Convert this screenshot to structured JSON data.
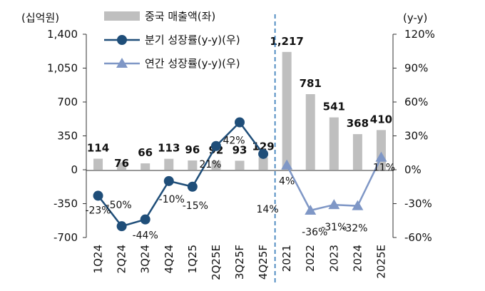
{
  "chart_data": {
    "type": "bar+line",
    "left_axis_unit": "(십억원)",
    "right_axis_unit": "(y-y)",
    "categories": [
      "1Q24",
      "2Q24",
      "3Q24",
      "4Q24",
      "1Q25",
      "2Q25E",
      "3Q25F",
      "4Q25F",
      "2021",
      "2022",
      "2023",
      "2024",
      "2025E"
    ],
    "left_ticks": [
      "1,400",
      "1,050",
      "700",
      "350",
      "0",
      "-350",
      "-700"
    ],
    "right_ticks": [
      "120%",
      "90%",
      "60%",
      "30%",
      "0%",
      "-30%",
      "-60%"
    ],
    "ylim_left": [
      -700,
      1400
    ],
    "ylim_right": [
      -60,
      120
    ],
    "bars": {
      "name": "중국 매출액(좌)",
      "values": [
        114,
        76,
        66,
        113,
        96,
        92,
        93,
        129,
        1217,
        781,
        541,
        368,
        410
      ],
      "labels": [
        "114",
        "76",
        "66",
        "113",
        "96",
        "92",
        "93",
        "129",
        "1,217",
        "781",
        "541",
        "368",
        "410"
      ],
      "color": "#bfbfbf"
    },
    "quarterly_growth": {
      "name": "분기 성장률(y-y)(우)",
      "values": [
        -23,
        -50,
        -44,
        -10,
        -15,
        21,
        42,
        14
      ],
      "labels": [
        "-23%",
        "-50%",
        "-44%",
        "-10%",
        "-15%",
        "21%",
        "42%",
        "14%"
      ],
      "color": "#1f4e79"
    },
    "annual_growth": {
      "name": "연간 성장률(y-y)(우)",
      "values": [
        4,
        -36,
        -31,
        -32,
        11
      ],
      "labels": [
        "4%",
        "-36%",
        "-31%",
        "-32%",
        "11%"
      ],
      "color": "#7f97c6"
    },
    "divider_color": "#2e75b6"
  }
}
